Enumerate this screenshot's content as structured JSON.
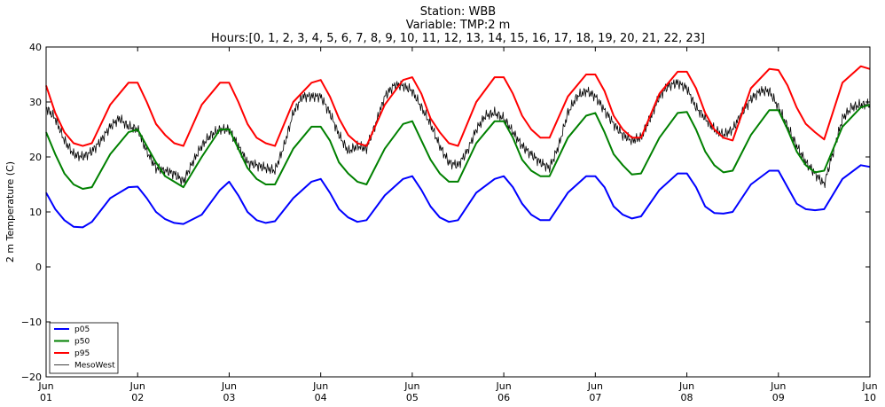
{
  "chart_data": {
    "type": "line",
    "title_lines": [
      "Station: WBB",
      "Variable: TMP:2 m",
      "Hours:[0, 1, 2, 3, 4, 5, 6, 7, 8, 9, 10, 11, 12, 13, 14, 15, 16, 17, 18, 19, 20, 21, 22, 23]"
    ],
    "xlabel": "",
    "ylabel": "2 m Temperature (C)",
    "ylim": [
      -20,
      40
    ],
    "yticks": [
      "−20",
      "−10",
      "0",
      "10",
      "20",
      "30",
      "40"
    ],
    "ytick_values": [
      -20,
      -10,
      0,
      10,
      20,
      30,
      40
    ],
    "xlim": [
      0,
      9
    ],
    "xticks": [
      {
        "value": 0,
        "line1": "Jun",
        "line2": "01"
      },
      {
        "value": 1,
        "line1": "Jun",
        "line2": "02"
      },
      {
        "value": 2,
        "line1": "Jun",
        "line2": "03"
      },
      {
        "value": 3,
        "line1": "Jun",
        "line2": "04"
      },
      {
        "value": 4,
        "line1": "Jun",
        "line2": "05"
      },
      {
        "value": 5,
        "line1": "Jun",
        "line2": "06"
      },
      {
        "value": 6,
        "line1": "Jun",
        "line2": "07"
      },
      {
        "value": 7,
        "line1": "Jun",
        "line2": "08"
      },
      {
        "value": 8,
        "line1": "Jun",
        "line2": "09"
      },
      {
        "value": 9,
        "line1": "Jun",
        "line2": "10"
      }
    ],
    "grid": false,
    "legend_position": "bottom-left",
    "series": [
      {
        "name": "p05",
        "color": "#0000ff",
        "width": 2,
        "x": [
          0,
          0.1,
          0.2,
          0.3,
          0.4,
          0.5,
          0.7,
          0.9,
          1.0,
          1.1,
          1.2,
          1.3,
          1.4,
          1.5,
          1.7,
          1.9,
          2.0,
          2.1,
          2.2,
          2.3,
          2.4,
          2.5,
          2.7,
          2.9,
          3.0,
          3.1,
          3.2,
          3.3,
          3.4,
          3.5,
          3.7,
          3.9,
          4.0,
          4.1,
          4.2,
          4.3,
          4.4,
          4.5,
          4.7,
          4.9,
          5.0,
          5.1,
          5.2,
          5.3,
          5.4,
          5.5,
          5.7,
          5.9,
          6.0,
          6.1,
          6.2,
          6.3,
          6.4,
          6.5,
          6.7,
          6.9,
          7.0,
          7.1,
          7.2,
          7.3,
          7.4,
          7.5,
          7.7,
          7.9,
          8.0,
          8.1,
          8.2,
          8.3,
          8.4,
          8.5,
          8.7,
          8.9,
          9.0
        ],
        "y": [
          13.5,
          10.5,
          8.5,
          7.3,
          7.2,
          8.2,
          12.5,
          14.5,
          14.6,
          12.5,
          10.0,
          8.7,
          8.0,
          7.8,
          9.5,
          14.0,
          15.5,
          13.0,
          10.0,
          8.5,
          8.0,
          8.3,
          12.5,
          15.5,
          16.0,
          13.5,
          10.5,
          9.0,
          8.2,
          8.5,
          13.0,
          16.0,
          16.5,
          14.0,
          11.0,
          9.0,
          8.2,
          8.5,
          13.5,
          16.0,
          16.5,
          14.5,
          11.5,
          9.5,
          8.5,
          8.5,
          13.5,
          16.5,
          16.5,
          14.5,
          11.0,
          9.5,
          8.8,
          9.2,
          14.0,
          17.0,
          17.0,
          14.5,
          11.0,
          9.8,
          9.7,
          10.0,
          15.0,
          17.5,
          17.5,
          14.5,
          11.5,
          10.5,
          10.3,
          10.5,
          16.0,
          18.5,
          18.2
        ]
      },
      {
        "name": "p50",
        "color": "#008000",
        "width": 2,
        "x": [
          0,
          0.1,
          0.2,
          0.3,
          0.4,
          0.5,
          0.7,
          0.9,
          1.0,
          1.1,
          1.2,
          1.3,
          1.4,
          1.5,
          1.7,
          1.9,
          2.0,
          2.1,
          2.2,
          2.3,
          2.4,
          2.5,
          2.7,
          2.9,
          3.0,
          3.1,
          3.2,
          3.3,
          3.4,
          3.5,
          3.7,
          3.9,
          4.0,
          4.1,
          4.2,
          4.3,
          4.4,
          4.5,
          4.7,
          4.9,
          5.0,
          5.1,
          5.2,
          5.3,
          5.4,
          5.5,
          5.7,
          5.9,
          6.0,
          6.1,
          6.2,
          6.3,
          6.4,
          6.5,
          6.7,
          6.9,
          7.0,
          7.1,
          7.2,
          7.3,
          7.4,
          7.5,
          7.7,
          7.9,
          8.0,
          8.1,
          8.2,
          8.3,
          8.4,
          8.5,
          8.7,
          8.9,
          9.0
        ],
        "y": [
          24.5,
          20.5,
          17.0,
          15.0,
          14.2,
          14.5,
          20.5,
          24.5,
          25.0,
          22.0,
          19.0,
          16.5,
          15.5,
          14.5,
          20.0,
          25.0,
          25.0,
          21.5,
          18.0,
          16.0,
          15.0,
          15.0,
          21.5,
          25.5,
          25.5,
          23.0,
          19.0,
          17.0,
          15.5,
          15.0,
          21.5,
          26.0,
          26.5,
          23.0,
          19.5,
          17.0,
          15.5,
          15.5,
          22.5,
          26.5,
          26.5,
          23.5,
          19.5,
          17.5,
          16.5,
          16.5,
          23.5,
          27.5,
          28.0,
          24.5,
          20.5,
          18.5,
          16.8,
          17.0,
          23.5,
          28.0,
          28.2,
          25.0,
          21.0,
          18.5,
          17.2,
          17.5,
          24.0,
          28.5,
          28.5,
          25.0,
          21.0,
          18.5,
          17.2,
          17.5,
          25.5,
          29.0,
          29.5
        ]
      },
      {
        "name": "p95",
        "color": "#ff0000",
        "width": 2,
        "x": [
          0,
          0.1,
          0.2,
          0.3,
          0.4,
          0.5,
          0.7,
          0.9,
          1.0,
          1.1,
          1.2,
          1.3,
          1.4,
          1.5,
          1.7,
          1.9,
          2.0,
          2.1,
          2.2,
          2.3,
          2.4,
          2.5,
          2.7,
          2.9,
          3.0,
          3.1,
          3.2,
          3.3,
          3.4,
          3.5,
          3.7,
          3.9,
          4.0,
          4.1,
          4.2,
          4.3,
          4.4,
          4.5,
          4.7,
          4.9,
          5.0,
          5.1,
          5.2,
          5.3,
          5.4,
          5.5,
          5.7,
          5.9,
          6.0,
          6.1,
          6.2,
          6.3,
          6.4,
          6.5,
          6.7,
          6.9,
          7.0,
          7.1,
          7.2,
          7.3,
          7.4,
          7.5,
          7.7,
          7.9,
          8.0,
          8.1,
          8.2,
          8.3,
          8.4,
          8.5,
          8.7,
          8.9,
          9.0
        ],
        "y": [
          33.0,
          28.0,
          24.5,
          22.5,
          22.0,
          22.5,
          29.5,
          33.5,
          33.5,
          30.0,
          26.0,
          24.0,
          22.5,
          22.0,
          29.5,
          33.5,
          33.5,
          30.0,
          26.0,
          23.5,
          22.5,
          22.0,
          30.0,
          33.5,
          34.0,
          31.0,
          27.0,
          24.0,
          22.5,
          22.0,
          29.5,
          34.0,
          34.5,
          31.5,
          27.0,
          24.5,
          22.5,
          22.0,
          30.0,
          34.5,
          34.5,
          31.5,
          27.5,
          25.0,
          23.5,
          23.5,
          31.0,
          35.0,
          35.0,
          32.0,
          27.5,
          25.0,
          23.5,
          23.5,
          31.5,
          35.5,
          35.5,
          32.5,
          28.0,
          25.0,
          23.5,
          23.0,
          32.5,
          36.0,
          35.8,
          33.0,
          29.0,
          26.0,
          24.5,
          23.2,
          33.5,
          36.5,
          36.0
        ]
      },
      {
        "name": "MesoWest",
        "color": "#000000",
        "width": 0.8,
        "x": [
          0,
          0.1,
          0.2,
          0.3,
          0.4,
          0.5,
          0.6,
          0.7,
          0.8,
          0.9,
          1.0,
          1.1,
          1.2,
          1.3,
          1.4,
          1.5,
          1.6,
          1.7,
          1.8,
          1.9,
          2.0,
          2.1,
          2.2,
          2.3,
          2.4,
          2.5,
          2.6,
          2.7,
          2.8,
          2.9,
          3.0,
          3.1,
          3.2,
          3.3,
          3.4,
          3.5,
          3.6,
          3.7,
          3.8,
          3.9,
          4.0,
          4.1,
          4.2,
          4.3,
          4.4,
          4.5,
          4.6,
          4.7,
          4.8,
          4.9,
          5.0,
          5.1,
          5.2,
          5.3,
          5.4,
          5.5,
          5.6,
          5.7,
          5.8,
          5.9,
          6.0,
          6.1,
          6.2,
          6.3,
          6.4,
          6.5,
          6.6,
          6.7,
          6.8,
          6.9,
          7.0,
          7.1,
          7.2,
          7.3,
          7.4,
          7.5,
          7.6,
          7.7,
          7.8,
          7.9,
          8.0,
          8.1,
          8.2,
          8.3,
          8.4,
          8.5,
          8.6,
          8.7,
          8.8,
          8.9,
          9.0
        ],
        "y": [
          29.0,
          27.0,
          23.0,
          20.5,
          20.0,
          21.0,
          23.0,
          25.5,
          27.0,
          25.5,
          25.0,
          21.0,
          18.0,
          17.5,
          17.0,
          15.5,
          19.0,
          22.0,
          24.0,
          25.0,
          25.0,
          22.0,
          19.0,
          18.5,
          18.0,
          17.5,
          22.0,
          28.0,
          31.0,
          31.0,
          31.0,
          28.0,
          24.0,
          21.0,
          22.0,
          21.5,
          26.0,
          31.0,
          33.0,
          33.0,
          32.0,
          29.0,
          26.0,
          22.0,
          19.0,
          18.5,
          21.0,
          25.0,
          27.5,
          28.0,
          27.0,
          24.5,
          22.0,
          20.5,
          19.0,
          18.0,
          22.0,
          28.0,
          31.0,
          32.0,
          31.0,
          28.5,
          26.0,
          24.0,
          23.0,
          23.5,
          27.0,
          31.0,
          33.0,
          33.5,
          32.5,
          29.0,
          27.0,
          25.0,
          24.0,
          25.0,
          28.0,
          30.5,
          32.0,
          32.0,
          29.0,
          25.5,
          22.0,
          19.0,
          17.0,
          15.0,
          21.0,
          27.0,
          29.0,
          29.5,
          29.5
        ]
      }
    ]
  }
}
